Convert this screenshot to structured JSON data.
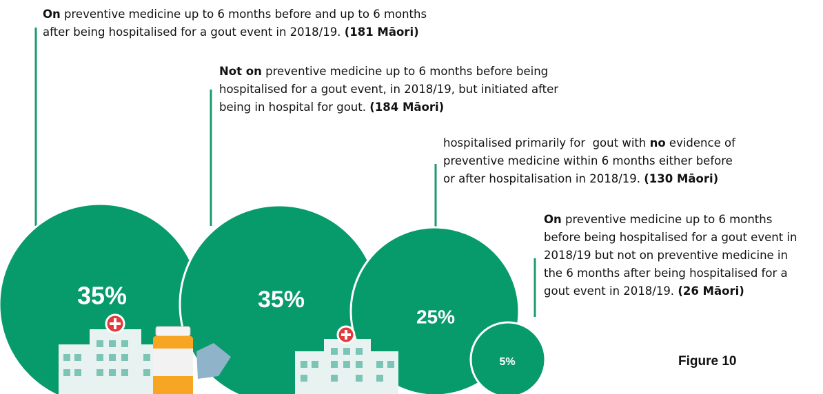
{
  "items": [
    {
      "percent": "35%",
      "lines": [
        [
          {
            "text": "On",
            "bold": true
          },
          {
            "text": " preventive medicine up to 6 months before and up to 6 months",
            "bold": false
          }
        ],
        [
          {
            "text": "after being hospitalised for a gout event in 2018/19. ",
            "bold": false
          },
          {
            "text": "(181 Māori)",
            "bold": true
          }
        ]
      ]
    },
    {
      "percent": "35%",
      "lines": [
        [
          {
            "text": "Not on",
            "bold": true
          },
          {
            "text": " preventive medicine up to 6 months before being",
            "bold": false
          }
        ],
        [
          {
            "text": "hospitalised for a gout event, in 2018/19, but initiated after",
            "bold": false
          }
        ],
        [
          {
            "text": "being in hospital for gout. ",
            "bold": false
          },
          {
            "text": "(184 Māori)",
            "bold": true
          }
        ]
      ]
    },
    {
      "percent": "25%",
      "lines": [
        [
          {
            "text": "hospitalised primarily for  gout with ",
            "bold": false
          },
          {
            "text": "no",
            "bold": true
          },
          {
            "text": " evidence of",
            "bold": false
          }
        ],
        [
          {
            "text": "preventive medicine within 6 months either before",
            "bold": false
          }
        ],
        [
          {
            "text": "or after hospitalisation in 2018/19. ",
            "bold": false
          },
          {
            "text": "(130 Māori)",
            "bold": true
          }
        ]
      ]
    },
    {
      "percent": "5%",
      "lines": [
        [
          {
            "text": "On",
            "bold": true
          },
          {
            "text": " preventive medicine up to 6 months",
            "bold": false
          }
        ],
        [
          {
            "text": "before being hospitalised for a gout event in",
            "bold": false
          }
        ],
        [
          {
            "text": "2018/19 but not on preventive medicine in",
            "bold": false
          }
        ],
        [
          {
            "text": "the 6 months after being hospitalised for a",
            "bold": false
          }
        ],
        [
          {
            "text": "gout event in 2018/19. ",
            "bold": false
          },
          {
            "text": "(26 Māori)",
            "bold": true
          }
        ]
      ]
    }
  ],
  "figure_label": "Figure 10"
}
